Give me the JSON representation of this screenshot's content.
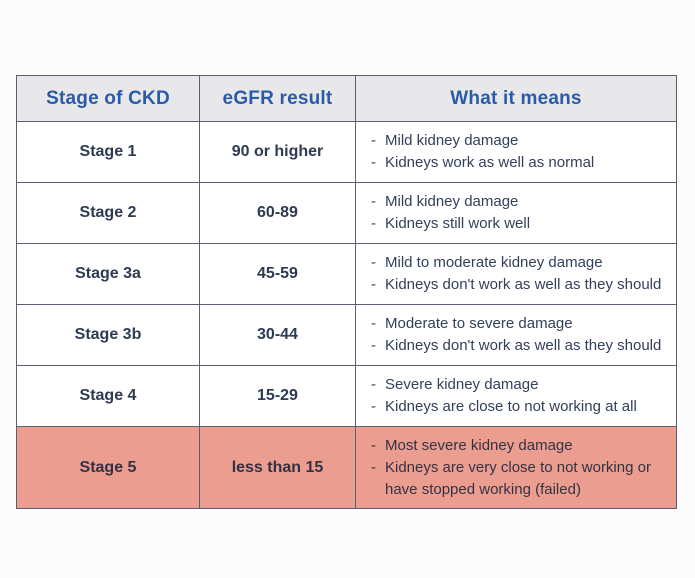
{
  "page": {
    "background_color": "#fcfcfc"
  },
  "table": {
    "border_color": "#5b6070",
    "header": {
      "background_color": "#e8e8eb",
      "text_color": "#2a5ba9",
      "columns": [
        {
          "label": "Stage of CKD"
        },
        {
          "label": "eGFR result"
        },
        {
          "label": "What it means"
        }
      ]
    },
    "body_text_color": "#2d3a52",
    "highlight_background_color": "#eb9e8f",
    "rows": [
      {
        "stage": "Stage 1",
        "egfr": "90 or higher",
        "means": [
          "Mild kidney damage",
          "Kidneys work as well as normal"
        ],
        "highlight": false
      },
      {
        "stage": "Stage 2",
        "egfr": "60-89",
        "means": [
          "Mild kidney damage",
          "Kidneys still work well"
        ],
        "highlight": false
      },
      {
        "stage": "Stage 3a",
        "egfr": "45-59",
        "means": [
          "Mild to moderate kidney damage",
          "Kidneys don't work as well as they should"
        ],
        "highlight": false
      },
      {
        "stage": "Stage 3b",
        "egfr": "30-44",
        "means": [
          "Moderate to severe damage",
          "Kidneys don't work as well as they should"
        ],
        "highlight": false
      },
      {
        "stage": "Stage 4",
        "egfr": "15-29",
        "means": [
          "Severe kidney damage",
          "Kidneys are close to not working at all"
        ],
        "highlight": false
      },
      {
        "stage": "Stage 5",
        "egfr": "less than 15",
        "means": [
          "Most severe kidney damage",
          "Kidneys are very close to not working or have stopped working (failed)"
        ],
        "highlight": true
      }
    ]
  }
}
